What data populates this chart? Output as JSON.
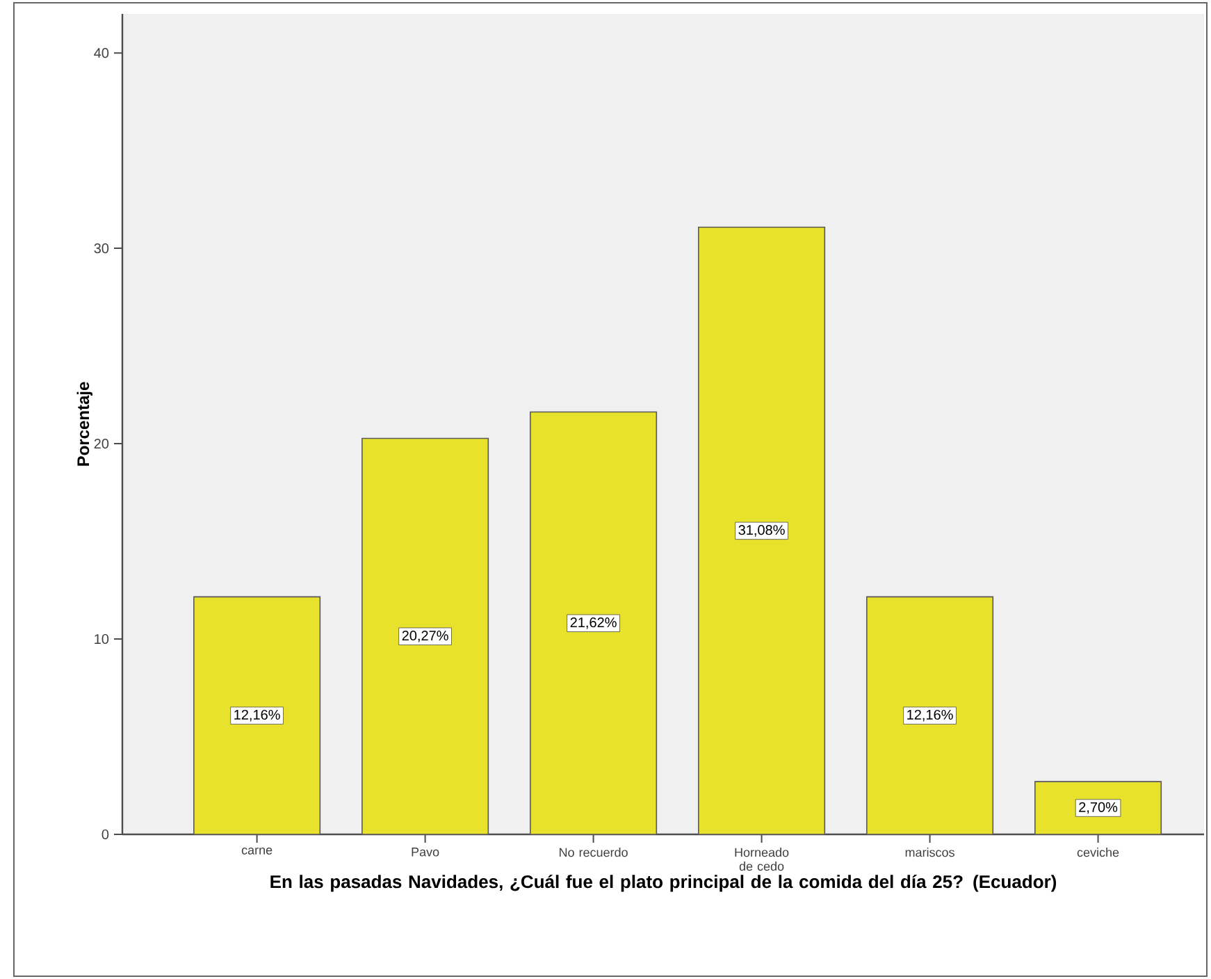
{
  "chart_data": {
    "type": "bar",
    "xlabel": "En las pasadas Navidades, ¿Cuál fue el plato principal de la comida del día 25? (Ecuador)",
    "ylabel": "Porcentaje",
    "categories": [
      "carne",
      "Pavo",
      "No recuerdo",
      "Horneado de cedo",
      "mariscos",
      "ceviche"
    ],
    "values": [
      12.16,
      20.27,
      21.62,
      31.08,
      12.16,
      2.7
    ],
    "value_labels": [
      "12,16%",
      "20,27%",
      "21,62%",
      "31,08%",
      "12,16%",
      "2,70%"
    ],
    "color": "#e8e22c",
    "ylim": [
      0,
      42
    ],
    "yticks": [
      0,
      10,
      20,
      30,
      40
    ]
  }
}
